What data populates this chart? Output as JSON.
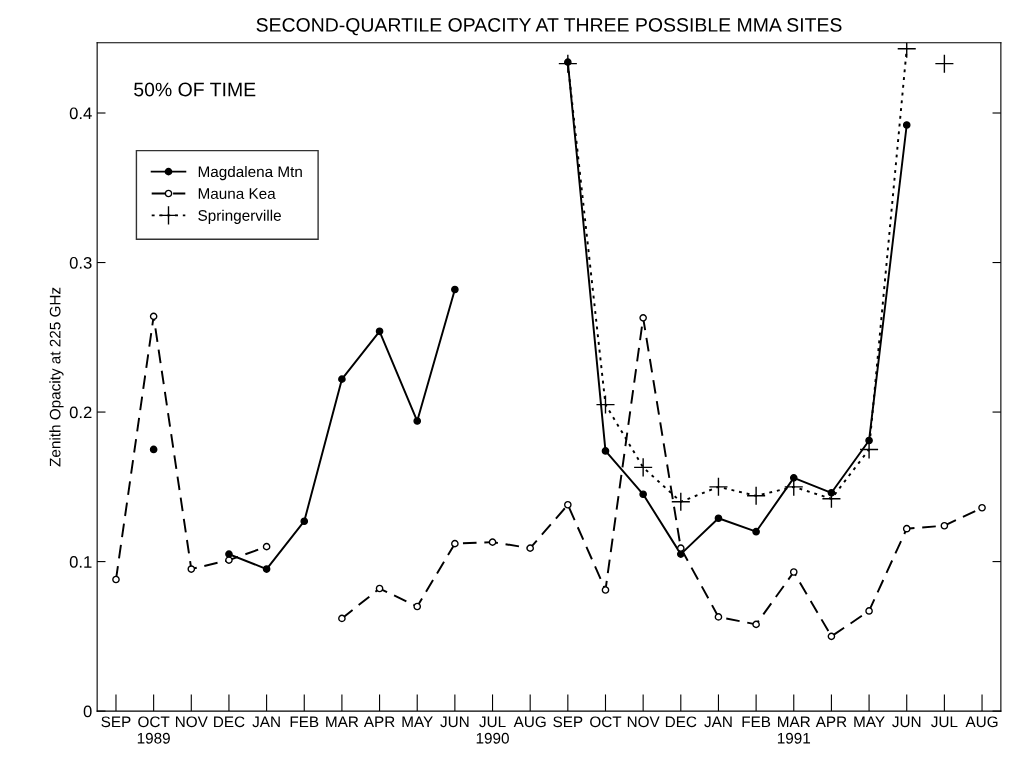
{
  "chart_data": {
    "type": "line",
    "title": "SECOND-QUARTILE OPACITY AT THREE POSSIBLE MMA SITES",
    "ylabel": "Zenith Opacity at 225 GHz",
    "annotations": [
      "50% OF TIME"
    ],
    "categories": [
      "SEP",
      "OCT\n1989",
      "NOV",
      "DEC",
      "JAN",
      "FEB",
      "MAR",
      "APR",
      "MAY",
      "JUN",
      "JUL\n1990",
      "AUG",
      "SEP",
      "OCT",
      "NOV",
      "DEC",
      "JAN",
      "FEB",
      "MAR\n1991",
      "APR",
      "MAY",
      "JUN",
      "JUL",
      "AUG"
    ],
    "series": [
      {
        "name": "Magdalena Mtn",
        "color": "#000000",
        "marker": "circle",
        "line_style": "solid",
        "values": [
          null,
          0.175,
          null,
          0.105,
          0.095,
          0.127,
          0.222,
          0.254,
          0.194,
          0.282,
          null,
          null,
          0.434,
          0.174,
          0.145,
          0.105,
          0.129,
          0.12,
          0.156,
          0.146,
          0.181,
          0.392,
          null,
          null
        ]
      },
      {
        "name": "Mauna Kea",
        "color": "#000000",
        "marker": "circle",
        "line_style": "dashed",
        "values": [
          0.088,
          0.264,
          0.095,
          0.101,
          0.11,
          null,
          0.062,
          0.082,
          0.07,
          0.112,
          0.113,
          0.109,
          0.138,
          0.081,
          0.263,
          0.109,
          0.063,
          0.058,
          0.093,
          0.05,
          0.067,
          0.122,
          0.124,
          0.136
        ]
      },
      {
        "name": "Springerville",
        "color": "#000000",
        "marker": "cross",
        "line_style": "dotted",
        "values": [
          null,
          null,
          null,
          null,
          null,
          null,
          null,
          null,
          null,
          null,
          null,
          null,
          0.433,
          0.205,
          0.163,
          0.14,
          0.15,
          0.144,
          0.15,
          0.142,
          0.175,
          0.443,
          null,
          null
        ]
      },
      {
        "type": "scatter",
        "color": "#000000",
        "marker": "cross",
        "values": [
          null,
          null,
          null,
          null,
          null,
          null,
          null,
          null,
          null,
          null,
          null,
          null,
          null,
          null,
          null,
          null,
          null,
          null,
          null,
          null,
          null,
          null,
          0.433,
          null
        ]
      }
    ],
    "ylim": [
      0,
      0.447
    ],
    "yticks": [
      0,
      0.1,
      0.2,
      0.3,
      0.4
    ],
    "grid": false,
    "legend": "top left"
  }
}
